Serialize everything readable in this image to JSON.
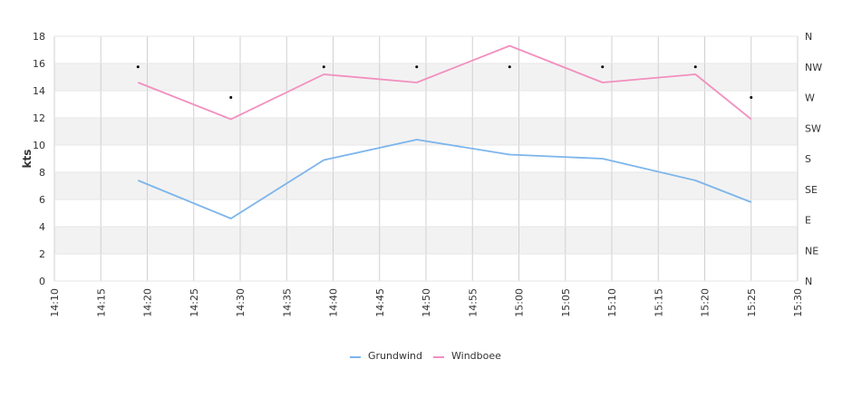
{
  "chart_data": {
    "type": "line",
    "title": "",
    "xlabel": "",
    "ylabel": "kts",
    "ylim": [
      0,
      18
    ],
    "y_ticks": [
      0,
      2,
      4,
      6,
      8,
      10,
      12,
      14,
      16,
      18
    ],
    "x_ticks": [
      "14:10",
      "14:15",
      "14:20",
      "14:25",
      "14:30",
      "14:35",
      "14:40",
      "14:45",
      "14:50",
      "14:55",
      "15:00",
      "15:05",
      "15:10",
      "15:15",
      "15:20",
      "15:25",
      "15:30"
    ],
    "x_range": [
      "14:10",
      "15:30"
    ],
    "right_axis_ticks": [
      "N",
      "NE",
      "E",
      "SE",
      "S",
      "SW",
      "W",
      "NW",
      "N"
    ],
    "grid": true,
    "legend_position": "bottom",
    "series": [
      {
        "name": "Grundwind",
        "color": "#7cb5ec",
        "points": [
          [
            "14:19",
            7.4
          ],
          [
            "14:29",
            4.6
          ],
          [
            "14:39",
            8.9
          ],
          [
            "14:49",
            10.4
          ],
          [
            "14:59",
            9.3
          ],
          [
            "15:09",
            9.0
          ],
          [
            "15:19",
            7.4
          ],
          [
            "15:25",
            5.8
          ]
        ]
      },
      {
        "name": "Windboee",
        "color": "#f28fbf",
        "points": [
          [
            "14:19",
            14.6
          ],
          [
            "14:29",
            11.9
          ],
          [
            "14:39",
            15.2
          ],
          [
            "14:49",
            14.6
          ],
          [
            "14:59",
            17.3
          ],
          [
            "15:09",
            14.6
          ],
          [
            "15:19",
            15.2
          ],
          [
            "15:25",
            11.9
          ]
        ]
      }
    ],
    "direction_markers": [
      [
        "14:19",
        "NW"
      ],
      [
        "14:29",
        "W"
      ],
      [
        "14:39",
        "NW"
      ],
      [
        "14:49",
        "NW"
      ],
      [
        "14:59",
        "NW"
      ],
      [
        "15:09",
        "NW"
      ],
      [
        "15:19",
        "NW"
      ],
      [
        "15:25",
        "W"
      ]
    ]
  }
}
